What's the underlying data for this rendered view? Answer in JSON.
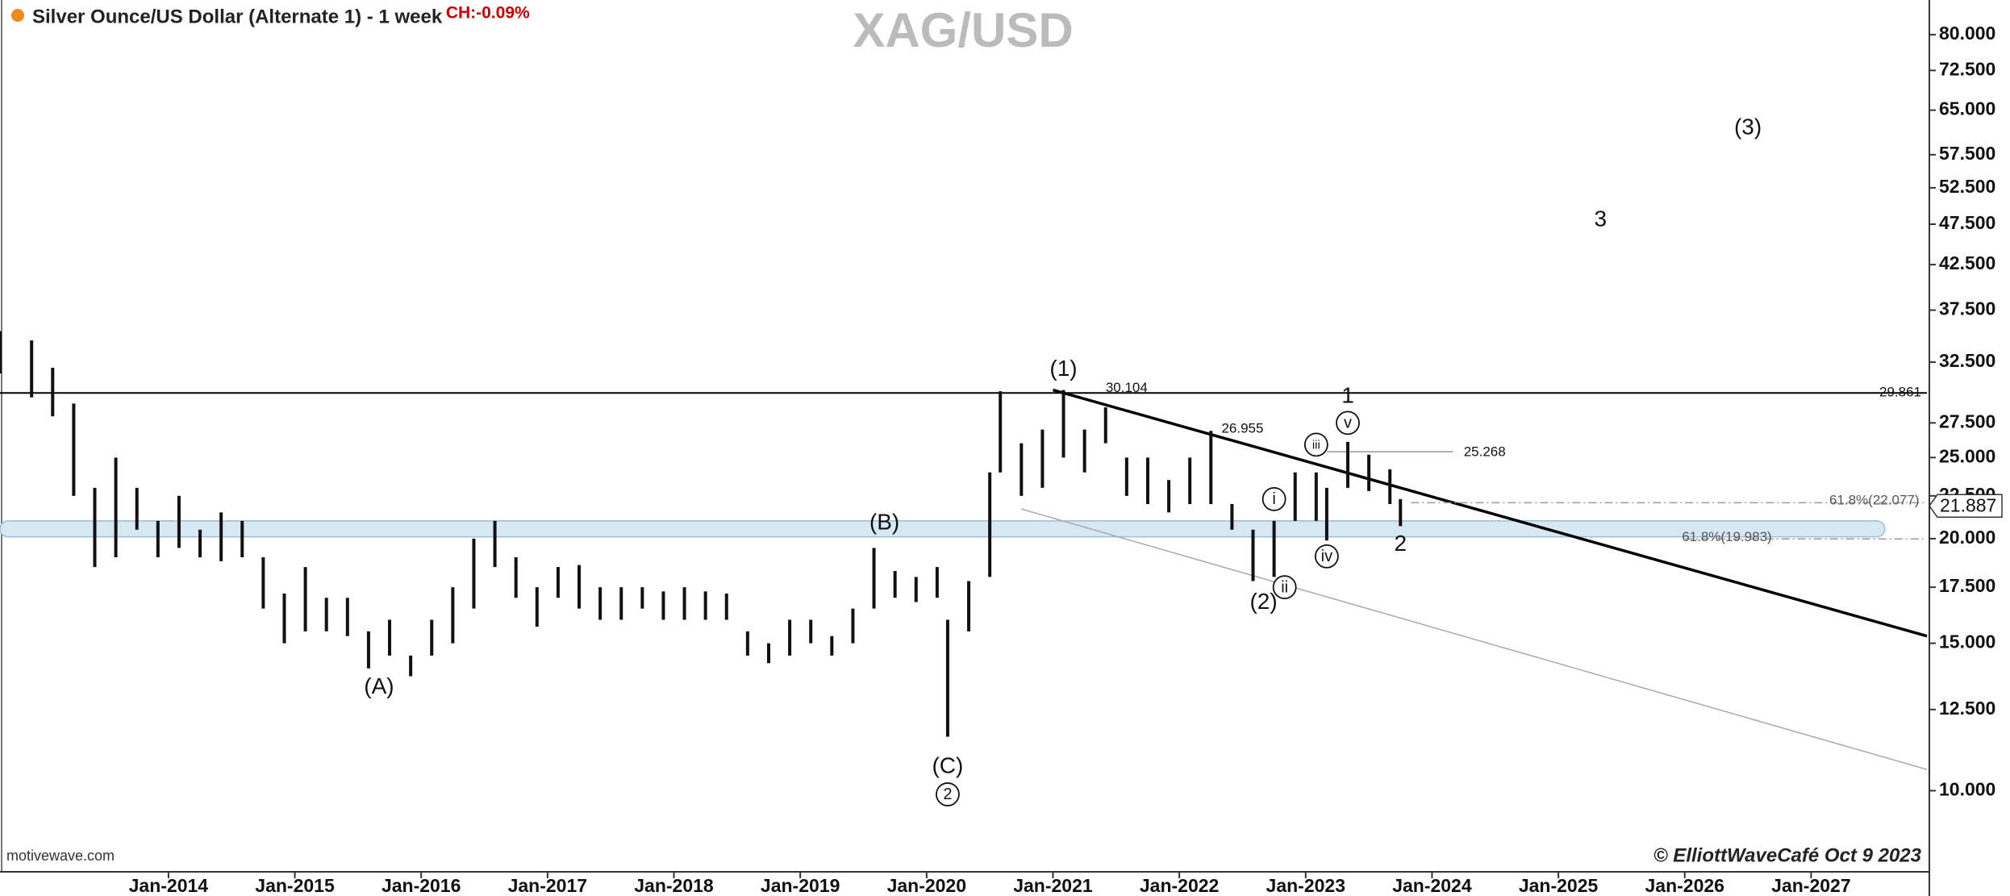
{
  "chart_data": {
    "type": "hilo",
    "title": "Silver Ounce/US Dollar (Alternate 1) - 1 week",
    "change": "CH:-0.09%",
    "watermark": "XAG/USD",
    "source": "motivewave.com",
    "credit": "© ElliottWaveCafé Oct 9 2023",
    "log_scale": true,
    "color": "#111111",
    "x": [
      "2012-09",
      "2012-12",
      "2013-02",
      "2013-04",
      "2013-06",
      "2013-08",
      "2013-10",
      "2013-12",
      "2014-02",
      "2014-04",
      "2014-06",
      "2014-08",
      "2014-10",
      "2014-12",
      "2015-02",
      "2015-04",
      "2015-06",
      "2015-08",
      "2015-10",
      "2015-12",
      "2016-02",
      "2016-04",
      "2016-06",
      "2016-08",
      "2016-10",
      "2016-12",
      "2017-02",
      "2017-04",
      "2017-06",
      "2017-08",
      "2017-10",
      "2017-12",
      "2018-02",
      "2018-04",
      "2018-06",
      "2018-08",
      "2018-10",
      "2018-12",
      "2019-02",
      "2019-04",
      "2019-06",
      "2019-08",
      "2019-10",
      "2019-12",
      "2020-02",
      "2020-03",
      "2020-05",
      "2020-07",
      "2020-08",
      "2020-10",
      "2020-12",
      "2021-02",
      "2021-04",
      "2021-06",
      "2021-08",
      "2021-10",
      "2021-12",
      "2022-02",
      "2022-04",
      "2022-06",
      "2022-08",
      "2022-10",
      "2022-12",
      "2023-02",
      "2023-03",
      "2023-05",
      "2023-07",
      "2023-09",
      "2023-10"
    ],
    "low": [
      31.5,
      29.5,
      28,
      22.5,
      18.5,
      19,
      20.5,
      19,
      19.5,
      19,
      18.8,
      19,
      16.5,
      15,
      15.5,
      15.5,
      15.3,
      14,
      14.5,
      13.7,
      14.5,
      15,
      16.5,
      18.5,
      17,
      15.7,
      17,
      16.5,
      16,
      16,
      16.5,
      16,
      16,
      16,
      16,
      14.5,
      14.2,
      14.5,
      15,
      14.5,
      15,
      16.5,
      17,
      16.8,
      17,
      11.6,
      15.5,
      18,
      24,
      22.5,
      23,
      25,
      24,
      26,
      22.5,
      22,
      21.5,
      22,
      22,
      20.5,
      17.8,
      18,
      21,
      21,
      19.9,
      23,
      22.8,
      22,
      20.7
    ],
    "high": [
      35.4,
      34.5,
      32,
      29,
      23,
      25,
      23,
      21,
      22.5,
      20.5,
      21.5,
      21,
      19,
      17.2,
      18.5,
      17,
      17,
      15.5,
      16,
      14.5,
      16,
      17.5,
      20,
      21,
      19,
      17.5,
      18.5,
      18.6,
      17.5,
      17.5,
      17.5,
      17.3,
      17.5,
      17.3,
      17.2,
      15.5,
      15,
      16,
      16,
      15.3,
      16.5,
      19.5,
      18.3,
      18,
      18.5,
      16,
      17.8,
      24,
      30,
      26,
      27,
      30.1,
      27,
      28.7,
      25,
      25,
      23.5,
      25,
      26.9,
      22,
      20.5,
      21,
      24,
      24,
      23,
      26.1,
      25.2,
      24.2,
      22.3
    ],
    "xlim": [
      "2012-09",
      "2027-12"
    ],
    "xticks": [
      {
        "value": "2014-01",
        "label": "Jan-2014"
      },
      {
        "value": "2015-01",
        "label": "Jan-2015"
      },
      {
        "value": "2016-01",
        "label": "Jan-2016"
      },
      {
        "value": "2017-01",
        "label": "Jan-2017"
      },
      {
        "value": "2018-01",
        "label": "Jan-2018"
      },
      {
        "value": "2019-01",
        "label": "Jan-2019"
      },
      {
        "value": "2020-01",
        "label": "Jan-2020"
      },
      {
        "value": "2021-01",
        "label": "Jan-2021"
      },
      {
        "value": "2022-01",
        "label": "Jan-2022"
      },
      {
        "value": "2023-01",
        "label": "Jan-2023"
      },
      {
        "value": "2024-01",
        "label": "Jan-2024"
      },
      {
        "value": "2025-01",
        "label": "Jan-2025"
      },
      {
        "value": "2026-01",
        "label": "Jan-2026"
      },
      {
        "value": "2027-01",
        "label": "Jan-2027"
      }
    ],
    "ylim": [
      8,
      88
    ],
    "yticks": [
      {
        "value": 10,
        "label": "10.000"
      },
      {
        "value": 12.5,
        "label": "12.500"
      },
      {
        "value": 15,
        "label": "15.000"
      },
      {
        "value": 17.5,
        "label": "17.500"
      },
      {
        "value": 20,
        "label": "20.000"
      },
      {
        "value": 22.5,
        "label": "22.500"
      },
      {
        "value": 25,
        "label": "25.000"
      },
      {
        "value": 27.5,
        "label": "27.500"
      },
      {
        "value": 32.5,
        "label": "32.500"
      },
      {
        "value": 37.5,
        "label": "37.500"
      },
      {
        "value": 42.5,
        "label": "42.500"
      },
      {
        "value": 47.5,
        "label": "47.500"
      },
      {
        "value": 52.5,
        "label": "52.500"
      },
      {
        "value": 57.5,
        "label": "57.500"
      },
      {
        "value": 65,
        "label": "65.000"
      },
      {
        "value": 72.5,
        "label": "72.500"
      },
      {
        "value": 80,
        "label": "80.000"
      }
    ],
    "level": 29.861,
    "last_price": 21.887,
    "zone": {
      "x": [
        "2012-09",
        "2027-08"
      ],
      "y": [
        20.1,
        21.0
      ],
      "color": "#d8e8f2"
    },
    "lines": [
      {
        "x": [
          "2021-01",
          "2027-12"
        ],
        "y": [
          30.104,
          15.3
        ],
        "color": "#000000"
      },
      {
        "x": [
          "2020-10",
          "2027-12"
        ],
        "y": [
          21.7,
          10.6
        ],
        "color": "#aaaaaa"
      },
      {
        "x": [
          "2023-03",
          "2024-03"
        ],
        "y": [
          25.4,
          25.4
        ],
        "color": "#999999"
      }
    ],
    "fib_levels": [
      {
        "value": 22.077,
        "from": "2023-11"
      },
      {
        "value": 19.983,
        "from": "2026-01"
      }
    ],
    "annotations": [
      {
        "text": "(1)",
        "x": "2021-02",
        "y": 31.9
      },
      {
        "text": "30.104",
        "x": "2021-08",
        "y": 30.3
      },
      {
        "text": "26.955",
        "x": "2022-07",
        "y": 27.1
      },
      {
        "text": "25.268",
        "x": "2024-06",
        "y": 25.4
      },
      {
        "text": "1",
        "x": "2023-05",
        "y": 29.6
      },
      {
        "text": "v",
        "x": "2023-05",
        "y": 27.5,
        "circled": true
      },
      {
        "text": "iii",
        "x": "2023-02",
        "y": 25.9,
        "circled": true
      },
      {
        "text": "i",
        "x": "2022-10",
        "y": 22.3,
        "circled": true
      },
      {
        "text": "iv",
        "x": "2023-03",
        "y": 19.05,
        "circled": true
      },
      {
        "text": "ii",
        "x": "2022-11",
        "y": 17.5,
        "circled": true
      },
      {
        "text": "(2)",
        "x": "2022-09",
        "y": 16.8
      },
      {
        "text": "2",
        "x": "2023-10",
        "y": 19.7
      },
      {
        "text": "(B)",
        "x": "2019-09",
        "y": 20.9
      },
      {
        "text": "(A)",
        "x": "2015-09",
        "y": 13.3
      },
      {
        "text": "(C)",
        "x": "2020-03",
        "y": 10.7
      },
      {
        "text": "2",
        "x": "2020-03",
        "y": 9.9,
        "circled": true
      },
      {
        "text": "3",
        "x": "2025-05",
        "y": 48.1
      },
      {
        "text": "(3)",
        "x": "2026-07",
        "y": 62.0
      },
      {
        "text": "61.8%(22.077)",
        "x": "2027-07",
        "y": 22.25
      },
      {
        "text": "61.8%(19.983)",
        "x": "2026-05",
        "y": 20.1
      }
    ]
  }
}
